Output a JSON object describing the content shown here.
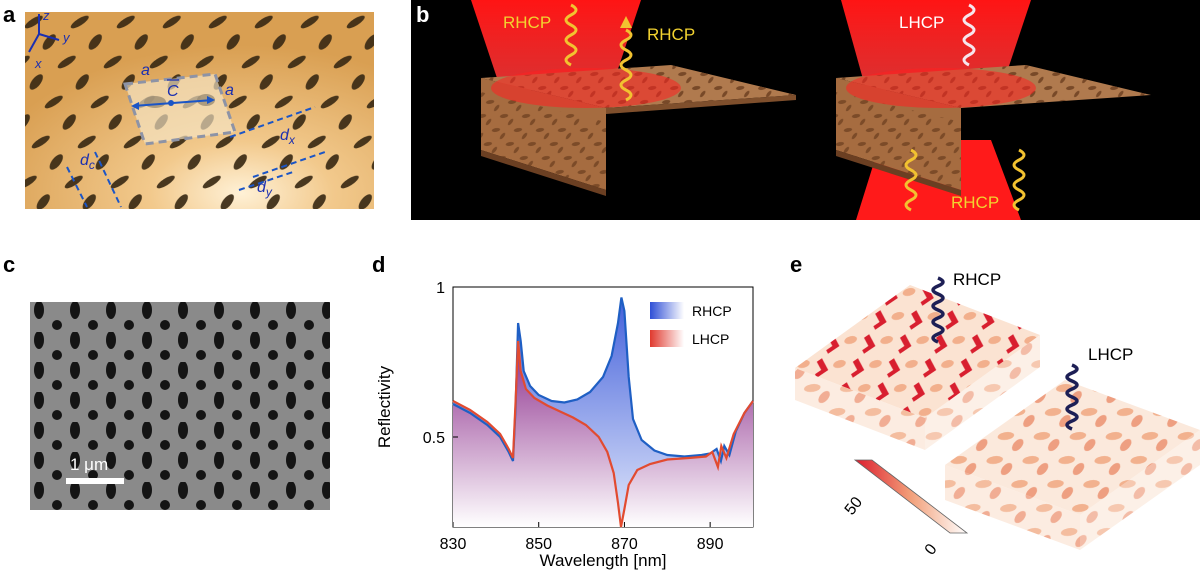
{
  "figure": {
    "panel_a": {
      "letter": "a",
      "axes": {
        "z": "z",
        "y": "y",
        "x": "x"
      },
      "labels": {
        "a_top": "a",
        "a_right": "a",
        "c_vec": "C",
        "dc": "d",
        "dc_sub": "c",
        "dx": "d",
        "dx_sub": "x",
        "dy": "d",
        "dy_sub": "y"
      }
    },
    "panel_b": {
      "letter": "b",
      "left_in": "RHCP",
      "left_out": "RHCP",
      "right_in": "LHCP",
      "right_trans": "RHCP"
    },
    "panel_c": {
      "letter": "c",
      "scale_bar": "1 μm"
    },
    "panel_e": {
      "letter": "e",
      "rhcp": "RHCP",
      "lhcp": "LHCP",
      "colorbar_max": "50",
      "colorbar_min": "0"
    },
    "colors": {
      "rhcp": "#2f5bd6",
      "lhcp": "#e0392e",
      "gold": "#e2b26c",
      "laser": "#ff1a1a"
    }
  },
  "chart_data": {
    "type": "line",
    "panel_letter": "d",
    "xlabel": "Wavelength [nm]",
    "ylabel": "Reflectivity",
    "xlim": [
      830,
      900
    ],
    "ylim": [
      0.2,
      1.0
    ],
    "x_ticks": [
      "830",
      "850",
      "870",
      "890"
    ],
    "y_ticks": [
      "0.5",
      "1"
    ],
    "legend_placement": "top-right",
    "series": [
      {
        "name": "RHCP",
        "color": "#1f5fc4",
        "points": [
          [
            830,
            0.61
          ],
          [
            834,
            0.58
          ],
          [
            838,
            0.54
          ],
          [
            841,
            0.5
          ],
          [
            843,
            0.45
          ],
          [
            844,
            0.42
          ],
          [
            844.6,
            0.6
          ],
          [
            845.2,
            0.88
          ],
          [
            845.8,
            0.82
          ],
          [
            846.5,
            0.72
          ],
          [
            848,
            0.67
          ],
          [
            850,
            0.64
          ],
          [
            853,
            0.62
          ],
          [
            856,
            0.615
          ],
          [
            859,
            0.625
          ],
          [
            862,
            0.65
          ],
          [
            865,
            0.7
          ],
          [
            867,
            0.77
          ],
          [
            868.5,
            0.88
          ],
          [
            869.3,
            0.965
          ],
          [
            870,
            0.92
          ],
          [
            871,
            0.7
          ],
          [
            872,
            0.56
          ],
          [
            874,
            0.49
          ],
          [
            877,
            0.455
          ],
          [
            880,
            0.44
          ],
          [
            884,
            0.435
          ],
          [
            888,
            0.44
          ],
          [
            890,
            0.445
          ],
          [
            891.5,
            0.46
          ],
          [
            892.5,
            0.42
          ],
          [
            893.3,
            0.47
          ],
          [
            894.5,
            0.44
          ],
          [
            896,
            0.52
          ],
          [
            898,
            0.58
          ],
          [
            900,
            0.62
          ]
        ]
      },
      {
        "name": "LHCP",
        "color": "#e24b30",
        "points": [
          [
            830,
            0.62
          ],
          [
            834,
            0.59
          ],
          [
            838,
            0.55
          ],
          [
            841,
            0.51
          ],
          [
            843,
            0.46
          ],
          [
            844,
            0.43
          ],
          [
            844.6,
            0.62
          ],
          [
            845.2,
            0.82
          ],
          [
            845.8,
            0.72
          ],
          [
            847,
            0.66
          ],
          [
            849,
            0.63
          ],
          [
            852,
            0.605
          ],
          [
            855,
            0.585
          ],
          [
            858,
            0.565
          ],
          [
            861,
            0.54
          ],
          [
            864,
            0.5
          ],
          [
            866,
            0.45
          ],
          [
            867.5,
            0.38
          ],
          [
            868.5,
            0.28
          ],
          [
            869.2,
            0.2
          ],
          [
            870,
            0.26
          ],
          [
            871,
            0.34
          ],
          [
            873,
            0.39
          ],
          [
            876,
            0.41
          ],
          [
            880,
            0.425
          ],
          [
            885,
            0.43
          ],
          [
            889,
            0.435
          ],
          [
            890.5,
            0.45
          ],
          [
            891.8,
            0.4
          ],
          [
            892.6,
            0.47
          ],
          [
            893.8,
            0.43
          ],
          [
            895.5,
            0.51
          ],
          [
            898,
            0.58
          ],
          [
            900,
            0.62
          ]
        ]
      }
    ]
  }
}
